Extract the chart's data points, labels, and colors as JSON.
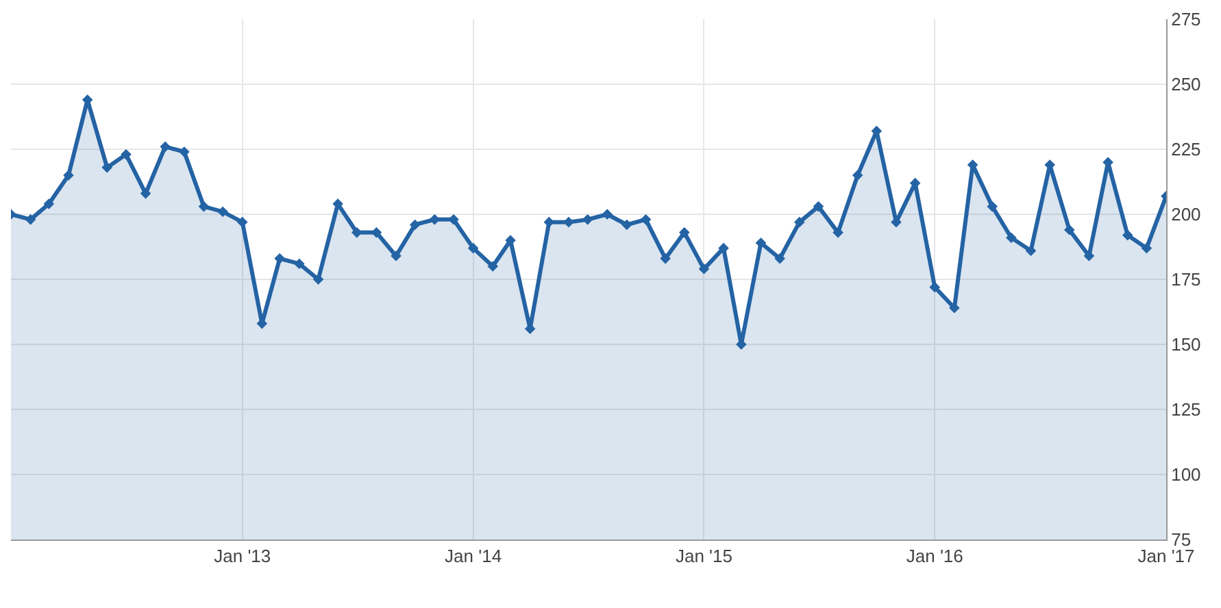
{
  "chart_data": {
    "type": "area",
    "x": [
      "2012-01",
      "2012-02",
      "2012-03",
      "2012-04",
      "2012-05",
      "2012-06",
      "2012-07",
      "2012-08",
      "2012-09",
      "2012-10",
      "2012-11",
      "2012-12",
      "2013-01",
      "2013-02",
      "2013-03",
      "2013-04",
      "2013-05",
      "2013-06",
      "2013-07",
      "2013-08",
      "2013-09",
      "2013-10",
      "2013-11",
      "2013-12",
      "2014-01",
      "2014-02",
      "2014-03",
      "2014-04",
      "2014-05",
      "2014-06",
      "2014-07",
      "2014-08",
      "2014-09",
      "2014-10",
      "2014-11",
      "2014-12",
      "2015-01",
      "2015-02",
      "2015-03",
      "2015-04",
      "2015-05",
      "2015-06",
      "2015-07",
      "2015-08",
      "2015-09",
      "2015-10",
      "2015-11",
      "2015-12",
      "2016-01",
      "2016-02",
      "2016-03",
      "2016-04",
      "2016-05",
      "2016-06",
      "2016-07",
      "2016-08",
      "2016-09",
      "2016-10",
      "2016-11",
      "2016-12",
      "2017-01"
    ],
    "series": [
      {
        "color": "#2463a4",
        "values": [
          200,
          198,
          204,
          215,
          244,
          218,
          223,
          208,
          226,
          224,
          203,
          201,
          197,
          158,
          183,
          181,
          175,
          204,
          193,
          193,
          184,
          196,
          198,
          198,
          187,
          180,
          190,
          156,
          197,
          197,
          198,
          200,
          196,
          198,
          183,
          193,
          179,
          187,
          150,
          189,
          183,
          197,
          203,
          193,
          215,
          232,
          197,
          212,
          172,
          164,
          219,
          203,
          191,
          186,
          219,
          194,
          184,
          220,
          192,
          187,
          207
        ]
      }
    ],
    "xlim": [
      "2012-01",
      "2017-01"
    ],
    "xticks": [
      {
        "value": "2013-01",
        "label": "Jan '13"
      },
      {
        "value": "2014-01",
        "label": "Jan '14"
      },
      {
        "value": "2015-01",
        "label": "Jan '15"
      },
      {
        "value": "2016-01",
        "label": "Jan '16"
      },
      {
        "value": "2017-01",
        "label": "Jan '17"
      }
    ],
    "ylim": [
      75,
      275
    ],
    "yticks": [
      75,
      100,
      125,
      150,
      175,
      200,
      225,
      250,
      275
    ],
    "grid": true,
    "marker": "diamond",
    "line_style": "solid"
  }
}
